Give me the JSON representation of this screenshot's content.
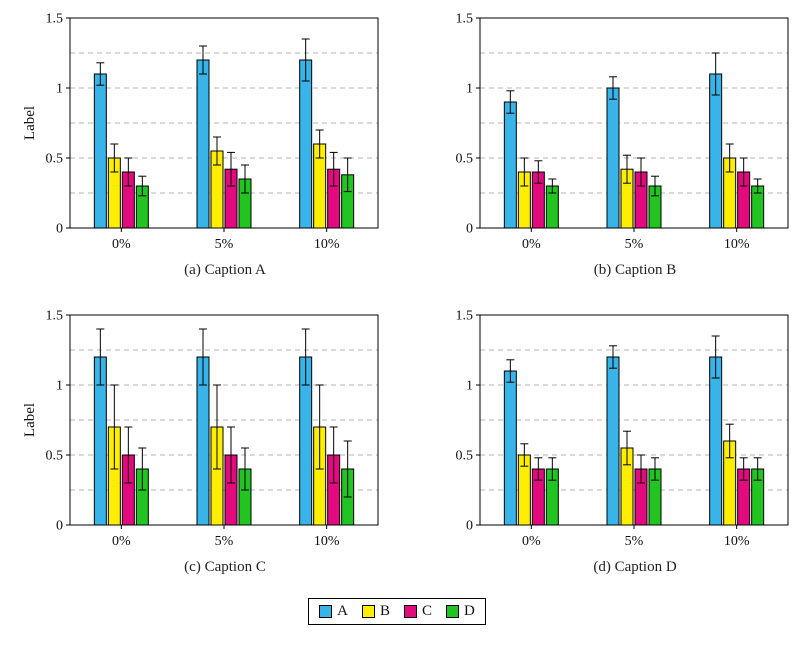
{
  "legend": {
    "entries": [
      {
        "label": "A",
        "color": "#38b4e8"
      },
      {
        "label": "B",
        "color": "#ffee00"
      },
      {
        "label": "C",
        "color": "#e3097e"
      },
      {
        "label": "D",
        "color": "#21c421"
      }
    ]
  },
  "chart_data": [
    {
      "type": "bar",
      "caption": "(a) Caption A",
      "ylabel": "Label",
      "categories": [
        "0%",
        "5%",
        "10%"
      ],
      "ylim": [
        0,
        1.5
      ],
      "yticks": [
        0,
        0.5,
        1,
        1.5
      ],
      "ytick_labels": [
        "0",
        "0.5",
        "1",
        "1.5"
      ],
      "gridlines": [
        0.25,
        0.5,
        0.75,
        1,
        1.25
      ],
      "grid_style": "dashed",
      "legend_position": "shared-bottom",
      "series": [
        {
          "name": "A",
          "color": "#38b4e8",
          "values": [
            1.1,
            1.2,
            1.2
          ],
          "errors": [
            0.08,
            0.1,
            0.15
          ]
        },
        {
          "name": "B",
          "color": "#ffee00",
          "values": [
            0.5,
            0.55,
            0.6
          ],
          "errors": [
            0.1,
            0.1,
            0.1
          ]
        },
        {
          "name": "C",
          "color": "#e3097e",
          "values": [
            0.4,
            0.42,
            0.42
          ],
          "errors": [
            0.1,
            0.12,
            0.12
          ]
        },
        {
          "name": "D",
          "color": "#21c421",
          "values": [
            0.3,
            0.35,
            0.38
          ],
          "errors": [
            0.07,
            0.1,
            0.12
          ]
        }
      ]
    },
    {
      "type": "bar",
      "caption": "(b) Caption B",
      "ylabel": "",
      "categories": [
        "0%",
        "5%",
        "10%"
      ],
      "ylim": [
        0,
        1.5
      ],
      "yticks": [
        0,
        0.5,
        1,
        1.5
      ],
      "ytick_labels": [
        "0",
        "0.5",
        "1",
        "1.5"
      ],
      "gridlines": [
        0.25,
        0.5,
        0.75,
        1,
        1.25
      ],
      "grid_style": "dashed",
      "legend_position": "shared-bottom",
      "series": [
        {
          "name": "A",
          "color": "#38b4e8",
          "values": [
            0.9,
            1.0,
            1.1
          ],
          "errors": [
            0.08,
            0.08,
            0.15
          ]
        },
        {
          "name": "B",
          "color": "#ffee00",
          "values": [
            0.4,
            0.42,
            0.5
          ],
          "errors": [
            0.1,
            0.1,
            0.1
          ]
        },
        {
          "name": "C",
          "color": "#e3097e",
          "values": [
            0.4,
            0.4,
            0.4
          ],
          "errors": [
            0.08,
            0.1,
            0.1
          ]
        },
        {
          "name": "D",
          "color": "#21c421",
          "values": [
            0.3,
            0.3,
            0.3
          ],
          "errors": [
            0.05,
            0.07,
            0.05
          ]
        }
      ]
    },
    {
      "type": "bar",
      "caption": "(c) Caption C",
      "ylabel": "Label",
      "categories": [
        "0%",
        "5%",
        "10%"
      ],
      "ylim": [
        0,
        1.5
      ],
      "yticks": [
        0,
        0.5,
        1,
        1.5
      ],
      "ytick_labels": [
        "0",
        "0.5",
        "1",
        "1.5"
      ],
      "gridlines": [
        0.25,
        0.5,
        0.75,
        1,
        1.25
      ],
      "grid_style": "dashed",
      "legend_position": "shared-bottom",
      "series": [
        {
          "name": "A",
          "color": "#38b4e8",
          "values": [
            1.2,
            1.2,
            1.2
          ],
          "errors": [
            0.2,
            0.2,
            0.2
          ]
        },
        {
          "name": "B",
          "color": "#ffee00",
          "values": [
            0.7,
            0.7,
            0.7
          ],
          "errors": [
            0.3,
            0.3,
            0.3
          ]
        },
        {
          "name": "C",
          "color": "#e3097e",
          "values": [
            0.5,
            0.5,
            0.5
          ],
          "errors": [
            0.2,
            0.2,
            0.2
          ]
        },
        {
          "name": "D",
          "color": "#21c421",
          "values": [
            0.4,
            0.4,
            0.4
          ],
          "errors": [
            0.15,
            0.15,
            0.2
          ]
        }
      ]
    },
    {
      "type": "bar",
      "caption": "(d) Caption D",
      "ylabel": "",
      "categories": [
        "0%",
        "5%",
        "10%"
      ],
      "ylim": [
        0,
        1.5
      ],
      "yticks": [
        0,
        0.5,
        1,
        1.5
      ],
      "ytick_labels": [
        "0",
        "0.5",
        "1",
        "1.5"
      ],
      "gridlines": [
        0.25,
        0.5,
        0.75,
        1,
        1.25
      ],
      "grid_style": "dashed",
      "legend_position": "shared-bottom",
      "series": [
        {
          "name": "A",
          "color": "#38b4e8",
          "values": [
            1.1,
            1.2,
            1.2
          ],
          "errors": [
            0.08,
            0.08,
            0.15
          ]
        },
        {
          "name": "B",
          "color": "#ffee00",
          "values": [
            0.5,
            0.55,
            0.6
          ],
          "errors": [
            0.08,
            0.12,
            0.12
          ]
        },
        {
          "name": "C",
          "color": "#e3097e",
          "values": [
            0.4,
            0.4,
            0.4
          ],
          "errors": [
            0.08,
            0.1,
            0.08
          ]
        },
        {
          "name": "D",
          "color": "#21c421",
          "values": [
            0.4,
            0.4,
            0.4
          ],
          "errors": [
            0.08,
            0.08,
            0.08
          ]
        }
      ]
    }
  ]
}
